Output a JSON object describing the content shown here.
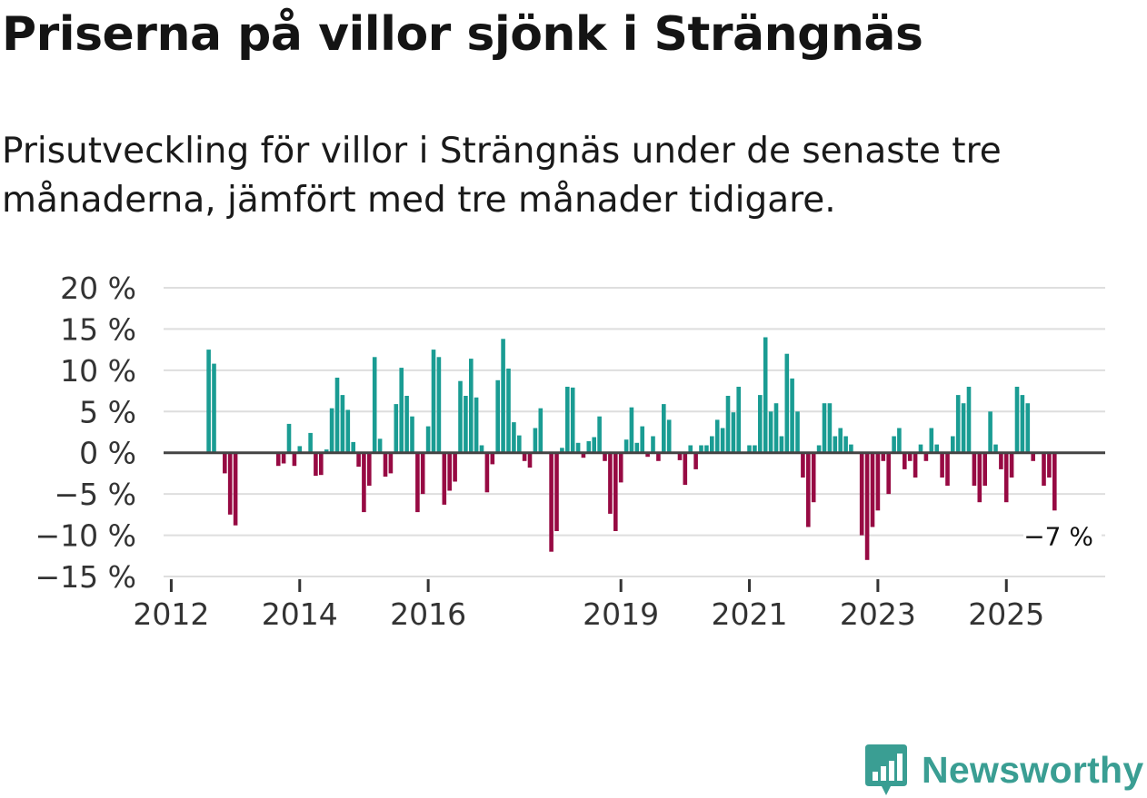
{
  "title": "Priserna på villor sjönk i Strängnäs",
  "subtitle": "Prisutveckling för villor i Strängnäs under de senaste tre månaderna, jämfört med tre månader tidigare.",
  "brand": {
    "name": "Newsworthy",
    "icon": "newsworthy-logo-icon",
    "color": "#3a9e93"
  },
  "colors": {
    "positive": "#1a9c93",
    "negative": "#970a43",
    "grid": "#dedede",
    "zero": "#444444"
  },
  "chart_data": {
    "type": "bar",
    "ylim": [
      -15,
      20
    ],
    "yticks": [
      -15,
      -10,
      -5,
      0,
      5,
      10,
      15,
      20
    ],
    "ytick_labels": [
      "−15 %",
      "−10 %",
      "−5 %",
      "0 %",
      "5 %",
      "10 %",
      "15 %",
      "20 %"
    ],
    "xticks": [
      {
        "label": "2012",
        "index": -1
      },
      {
        "label": "2014",
        "index": 23
      },
      {
        "label": "2016",
        "index": 47
      },
      {
        "label": "2019",
        "index": 83
      },
      {
        "label": "2021",
        "index": 107
      },
      {
        "label": "2023",
        "index": 131
      },
      {
        "label": "2025",
        "index": 155
      }
    ],
    "annotation": "−7 %",
    "values": [
      null,
      null,
      null,
      null,
      null,
      null,
      12.5,
      10.8,
      null,
      -2.5,
      -7.5,
      -8.8,
      null,
      null,
      null,
      null,
      null,
      null,
      null,
      -1.6,
      -1.3,
      3.5,
      -1.6,
      0.8,
      null,
      2.4,
      -2.8,
      -2.7,
      0.4,
      5.4,
      9.1,
      7.0,
      5.2,
      1.3,
      -1.7,
      -7.2,
      -4.0,
      11.6,
      1.7,
      -2.9,
      -2.5,
      5.9,
      10.3,
      6.9,
      4.4,
      -7.2,
      -5.0,
      3.2,
      12.5,
      11.6,
      -6.3,
      -4.6,
      -3.5,
      8.7,
      6.9,
      11.4,
      6.7,
      0.9,
      -4.8,
      -1.4,
      8.8,
      13.8,
      10.2,
      3.7,
      2.1,
      -1.0,
      -1.8,
      3.0,
      5.4,
      null,
      -12.0,
      -9.5,
      0.6,
      8.0,
      7.9,
      1.2,
      -0.6,
      1.4,
      1.9,
      4.4,
      -1.0,
      -7.4,
      -9.5,
      -3.6,
      1.6,
      5.5,
      1.2,
      3.2,
      -0.5,
      2.0,
      -1.0,
      5.9,
      4.0,
      null,
      -0.9,
      -3.9,
      0.9,
      -2.0,
      0.9,
      0.9,
      2.0,
      4.0,
      3.0,
      6.9,
      4.9,
      8.0,
      null,
      0.9,
      0.9,
      7.0,
      14.0,
      5.0,
      6.0,
      2.0,
      12.0,
      9.0,
      5.0,
      -3.0,
      -9.0,
      -6.0,
      0.9,
      6.0,
      6.0,
      2.0,
      3.0,
      2.0,
      1.0,
      null,
      -10.0,
      -13.0,
      -9.0,
      -7.0,
      -1.0,
      -5.0,
      2.0,
      3.0,
      -2.0,
      -1.0,
      -3.0,
      1.0,
      -1.0,
      3.0,
      1.0,
      -3.0,
      -4.0,
      2.0,
      7.0,
      6.0,
      8.0,
      -4.0,
      -6.0,
      -4.0,
      5.0,
      1.0,
      -2.0,
      -6.0,
      -3.0,
      8.0,
      7.0,
      6.0,
      -1.0,
      null,
      -4.0,
      -3.0,
      -7.0
    ]
  }
}
